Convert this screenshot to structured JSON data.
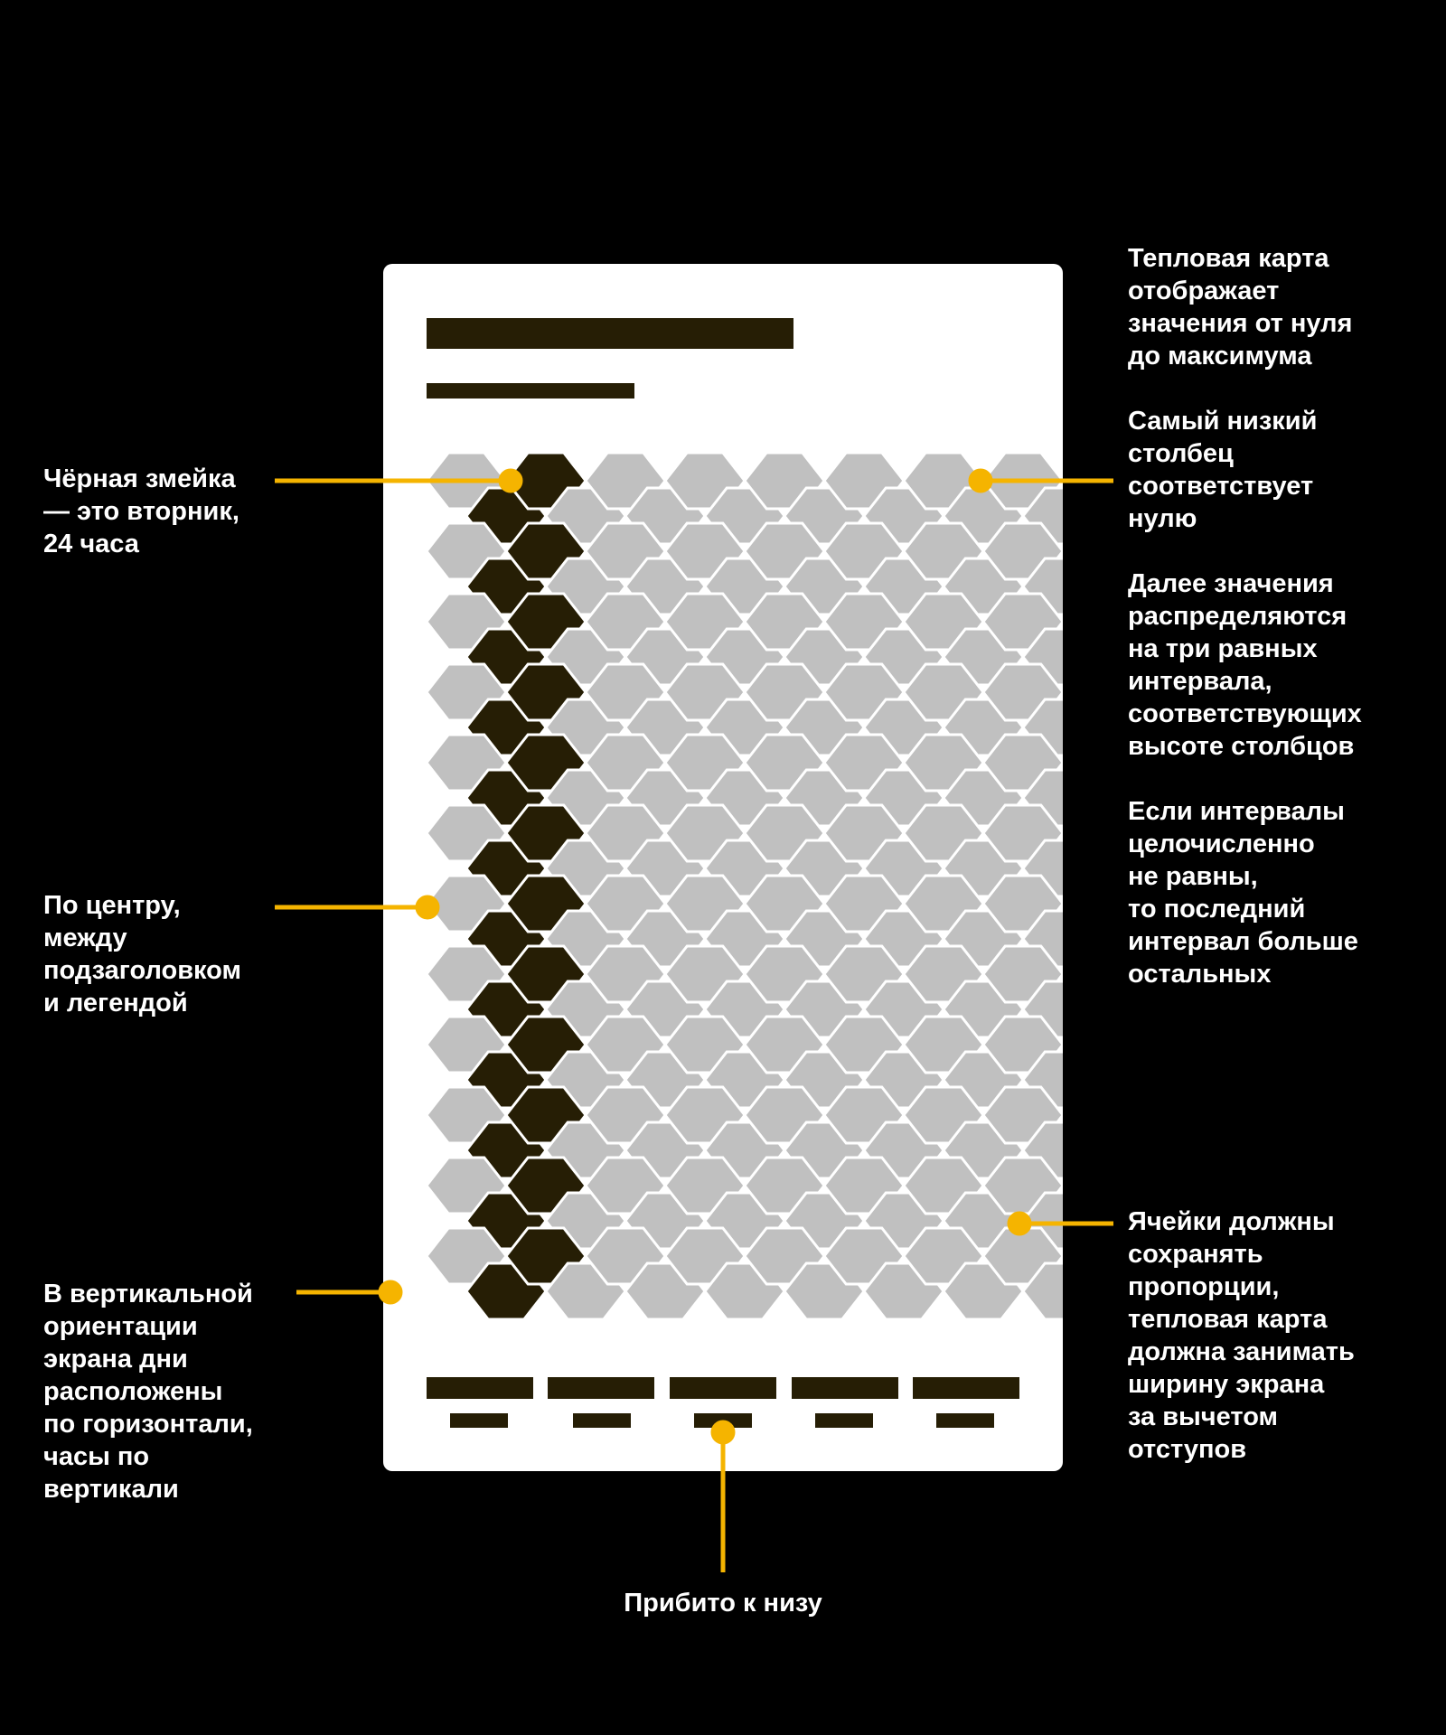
{
  "colors": {
    "background": "#000000",
    "screen": "#ffffff",
    "dark_cell": "#261e05",
    "light_cell": "#c0c0c0",
    "accent": "#f5b400"
  },
  "heatmap": {
    "columns": 8,
    "rows_per_column": 24,
    "highlighted_column": 2,
    "highlighted_label": "вторник"
  },
  "annotations": {
    "tuesday_snake": "Чёрная змейка\n— это вторник,\n24 часа",
    "centered": "По центру,\nмежду\nподзаголовком\nи легендой",
    "orientation": "В вертикальной\nориентации\nэкрана дни\nрасположены\nпо горизонтали,\nчасы по\nвертикали",
    "heatmap_range": "Тепловая карта\nотображает\nзначения от нуля\nдо максимума",
    "lowest_column": "Самый низкий\nстолбец\nсоответствует\nнулю",
    "intervals": "Далее значения\nраспределяются\nна три равных\nинтервала,\nсоответствующих\nвысоте столбцов",
    "unequal_intervals": "Если интервалы\nцелочисленно\nне равны,\nто последний\nинтервал больше\nостальных",
    "proportions": "Ячейки должны\nсохранять\nпропорции,\nтепловая карта\nдолжна занимать\nширину экрана\nза вычетом\nотступов",
    "pinned_bottom": "Прибито к низу"
  }
}
